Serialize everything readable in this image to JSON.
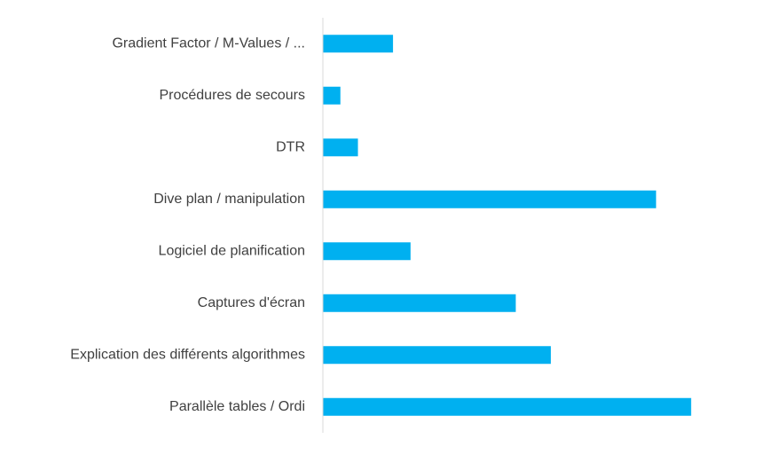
{
  "chart_data": {
    "type": "bar",
    "orientation": "horizontal",
    "categories": [
      "Gradient Factor / M-Values / ...",
      "Procédures de secours",
      "DTR",
      "Dive plan / manipulation",
      "Logiciel de planification",
      "Captures d'écran",
      "Explication des différents algorithmes",
      "Parallèle tables / Ordi"
    ],
    "values": [
      4,
      1,
      2,
      19,
      5,
      11,
      13,
      21
    ],
    "xlim": [
      0,
      22
    ],
    "title": "",
    "xlabel": "",
    "ylabel": "",
    "grid": false,
    "legend": "none",
    "colors": {
      "bar": "#00B0F0",
      "axis": "#d9d9d9",
      "label": "#404040"
    }
  }
}
